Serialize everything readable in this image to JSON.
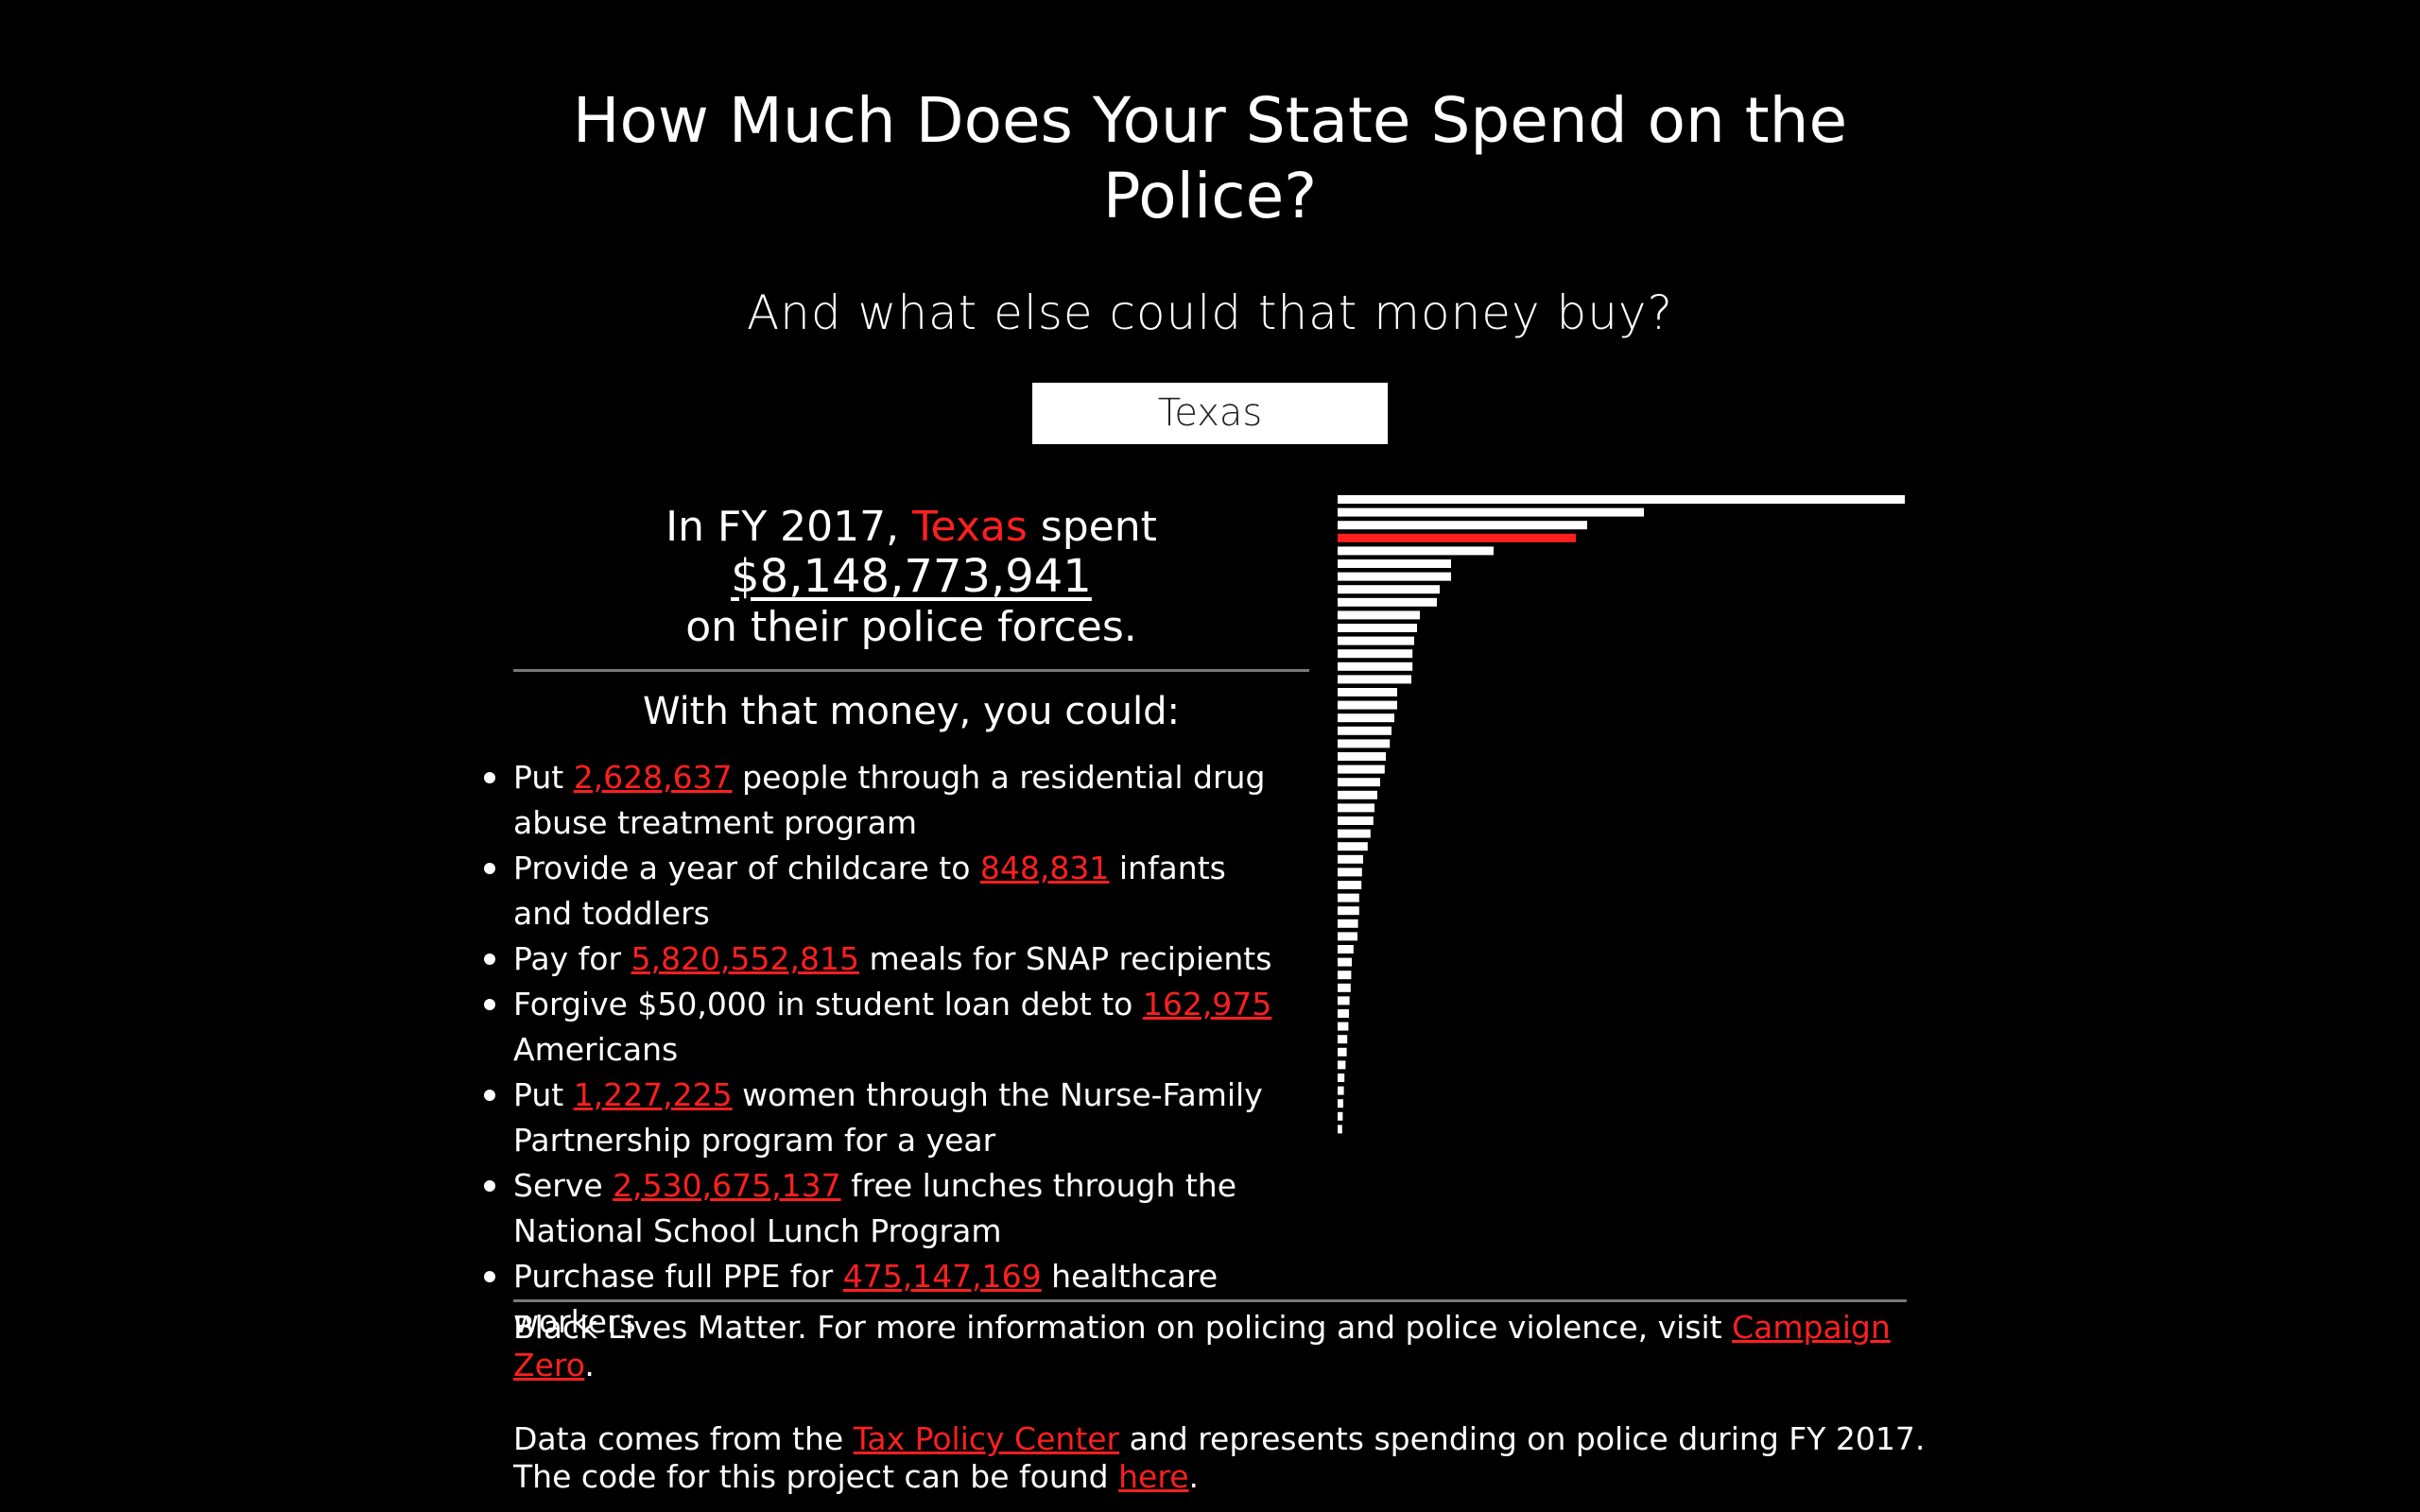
{
  "header": {
    "title_line1": "How Much Does Your State Spend on the",
    "title_line2": "Police?",
    "subtitle": "And what else could that money buy?"
  },
  "state_select": {
    "value": "Texas"
  },
  "stat": {
    "prefix": "In FY 2017,",
    "state": "Texas",
    "spent": "spent",
    "amount": "$8,148,773,941",
    "suffix": "on their police forces."
  },
  "alternatives": {
    "heading": "With that money, you could:",
    "items": [
      {
        "before": "Put",
        "number": "2,628,637",
        "after": "people through a residential drug abuse treatment program"
      },
      {
        "before": "Provide a year of childcare to",
        "number": "848,831",
        "after": "infants and toddlers"
      },
      {
        "before": "Pay for",
        "number": "5,820,552,815",
        "after": "meals for SNAP recipients"
      },
      {
        "before": "Forgive $50,000 in student loan debt to",
        "number": "162,975",
        "after": "Americans"
      },
      {
        "before": "Put",
        "number": "1,227,225",
        "after": "women through the Nurse-Family Partnership program for a year"
      },
      {
        "before": "Serve",
        "number": "2,530,675,137",
        "after": "free lunches through the National School Lunch Program"
      },
      {
        "before": "Purchase full PPE for",
        "number": "475,147,169",
        "after": "healthcare workers"
      }
    ]
  },
  "chart_data": {
    "type": "bar",
    "orientation": "horizontal",
    "highlight_color": "#ff1f1f",
    "bar_color": "#ffffff",
    "highlight_index": 3,
    "xlim": [
      0,
      100
    ],
    "values": [
      100,
      54,
      44,
      42,
      27.5,
      20,
      20,
      18,
      17.5,
      14.5,
      14,
      13.5,
      13.2,
      13.2,
      13,
      10.5,
      10.5,
      10,
      9.5,
      9.2,
      8.5,
      8.3,
      7.5,
      7,
      6.5,
      6.3,
      5.8,
      5.3,
      4.5,
      4.3,
      4.2,
      3.8,
      3.8,
      3.6,
      3.5,
      2.8,
      2.5,
      2.4,
      2.3,
      2.1,
      2,
      1.9,
      1.7,
      1.6,
      1.4,
      1.2,
      1.1,
      1,
      0.9,
      0.8
    ]
  },
  "footer": {
    "blm_text": "Black Lives Matter. For more information on policing and police violence, visit",
    "blm_link": "Campaign Zero",
    "period1": ".",
    "data_text": "Data comes from the",
    "data_link": "Tax Policy Center",
    "data_after": "and represents spending on police during FY 2017.",
    "code_text": "The code for this project can be found",
    "code_link": "here",
    "period2": "."
  }
}
